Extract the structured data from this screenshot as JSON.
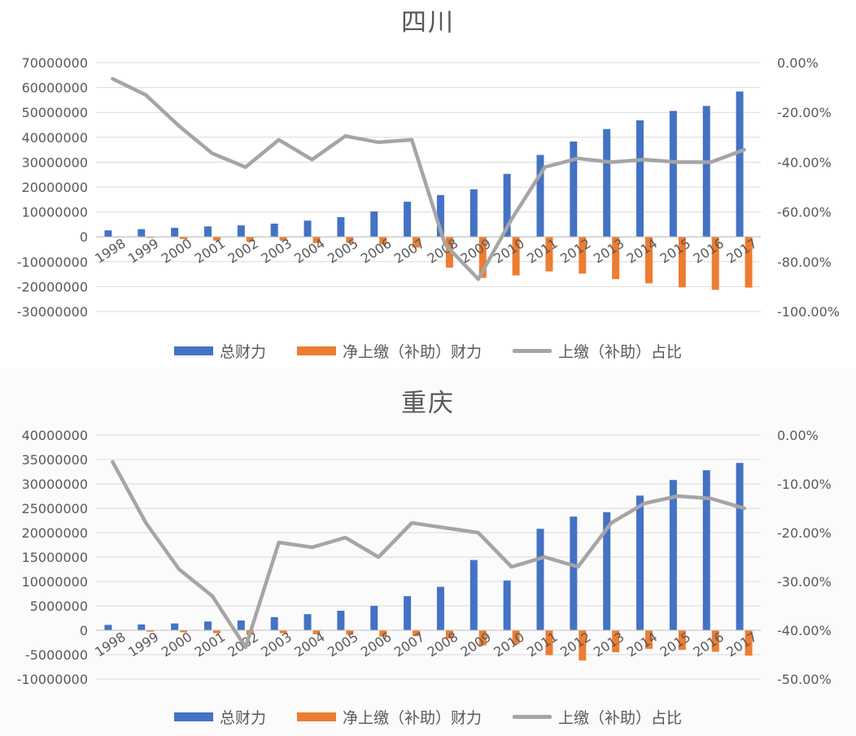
{
  "colors": {
    "total": "#4472C4",
    "net": "#ED7D31",
    "ratio": "#A5A5A5"
  },
  "chart_data": [
    {
      "type": "bar",
      "title": "四川",
      "categories": [
        "1998",
        "1999",
        "2000",
        "2001",
        "2002",
        "2003",
        "2004",
        "2005",
        "2006",
        "2007",
        "2008",
        "2009",
        "2010",
        "2011",
        "2012",
        "2013",
        "2014",
        "2015",
        "2016",
        "2017"
      ],
      "left_axis": {
        "min": -30000000,
        "max": 70000000,
        "step": 10000000,
        "ticks": [
          "70000000",
          "60000000",
          "50000000",
          "40000000",
          "30000000",
          "20000000",
          "10000000",
          "0",
          "-10000000",
          "-20000000",
          "-30000000"
        ]
      },
      "right_axis": {
        "min": -100,
        "max": 0,
        "step": 20,
        "ticks": [
          "0.00%",
          "-20.00%",
          "-40.00%",
          "-60.00%",
          "-80.00%",
          "-100.00%"
        ]
      },
      "series": [
        {
          "name": "总财力",
          "type": "bar",
          "values": [
            2600000,
            3100000,
            3600000,
            4200000,
            4600000,
            5300000,
            6500000,
            7900000,
            10200000,
            14100000,
            16800000,
            19100000,
            25300000,
            32900000,
            38300000,
            43300000,
            46800000,
            50600000,
            52600000,
            58400000
          ]
        },
        {
          "name": "净上缴（补助）财力",
          "type": "bar",
          "values": [
            -200000,
            -400000,
            -900000,
            -1500000,
            -1900000,
            -1600000,
            -2500000,
            -2400000,
            -3100000,
            -4300000,
            -12400000,
            -16500000,
            -15500000,
            -13900000,
            -14800000,
            -17000000,
            -18700000,
            -20300000,
            -21300000,
            -20400000
          ]
        },
        {
          "name": "上缴（补助）占比",
          "type": "line",
          "axis": "right",
          "values": [
            -6.5,
            -13,
            -25.5,
            -36.5,
            -42,
            -31,
            -39,
            -29.5,
            -32,
            -31,
            -73,
            -87,
            -63,
            -42,
            -38.5,
            -40,
            -39,
            -40,
            -40,
            -35
          ]
        }
      ],
      "legend": "bottom"
    },
    {
      "type": "bar",
      "title": "重庆",
      "categories": [
        "1998",
        "1999",
        "2000",
        "2001",
        "2002",
        "2003",
        "2004",
        "2005",
        "2006",
        "2007",
        "2008",
        "2009",
        "2010",
        "2011",
        "2012",
        "2013",
        "2014",
        "2015",
        "2016",
        "2017"
      ],
      "left_axis": {
        "min": -10000000,
        "max": 40000000,
        "step": 5000000,
        "ticks": [
          "40000000",
          "35000000",
          "30000000",
          "25000000",
          "20000000",
          "15000000",
          "10000000",
          "5000000",
          "0",
          "-5000000",
          "-10000000"
        ]
      },
      "right_axis": {
        "min": -50,
        "max": 0,
        "step": 10,
        "ticks": [
          "0.00%",
          "-10.00%",
          "-20.00%",
          "-30.00%",
          "-40.00%",
          "-50.00%"
        ]
      },
      "series": [
        {
          "name": "总财力",
          "type": "bar",
          "values": [
            1100000,
            1200000,
            1400000,
            1800000,
            2000000,
            2700000,
            3300000,
            4000000,
            5000000,
            7000000,
            8900000,
            14400000,
            10200000,
            20800000,
            23300000,
            24200000,
            27600000,
            30800000,
            32800000,
            34300000
          ]
        },
        {
          "name": "净上缴（补助）财力",
          "type": "bar",
          "values": [
            -100000,
            -300000,
            -400000,
            -600000,
            -900000,
            -600000,
            -800000,
            -900000,
            -1300000,
            -1200000,
            -1700000,
            -3100000,
            -2800000,
            -5100000,
            -6200000,
            -4500000,
            -3800000,
            -4000000,
            -4400000,
            -5200000
          ]
        },
        {
          "name": "上缴（补助）占比",
          "type": "line",
          "axis": "right",
          "values": [
            -5.5,
            -18,
            -27.5,
            -33,
            -43.5,
            -22,
            -23,
            -21,
            -25,
            -18,
            -19,
            -20,
            -27,
            -25,
            -27,
            -18,
            -14,
            -12.5,
            -13,
            -15
          ]
        }
      ],
      "legend": "bottom"
    }
  ]
}
